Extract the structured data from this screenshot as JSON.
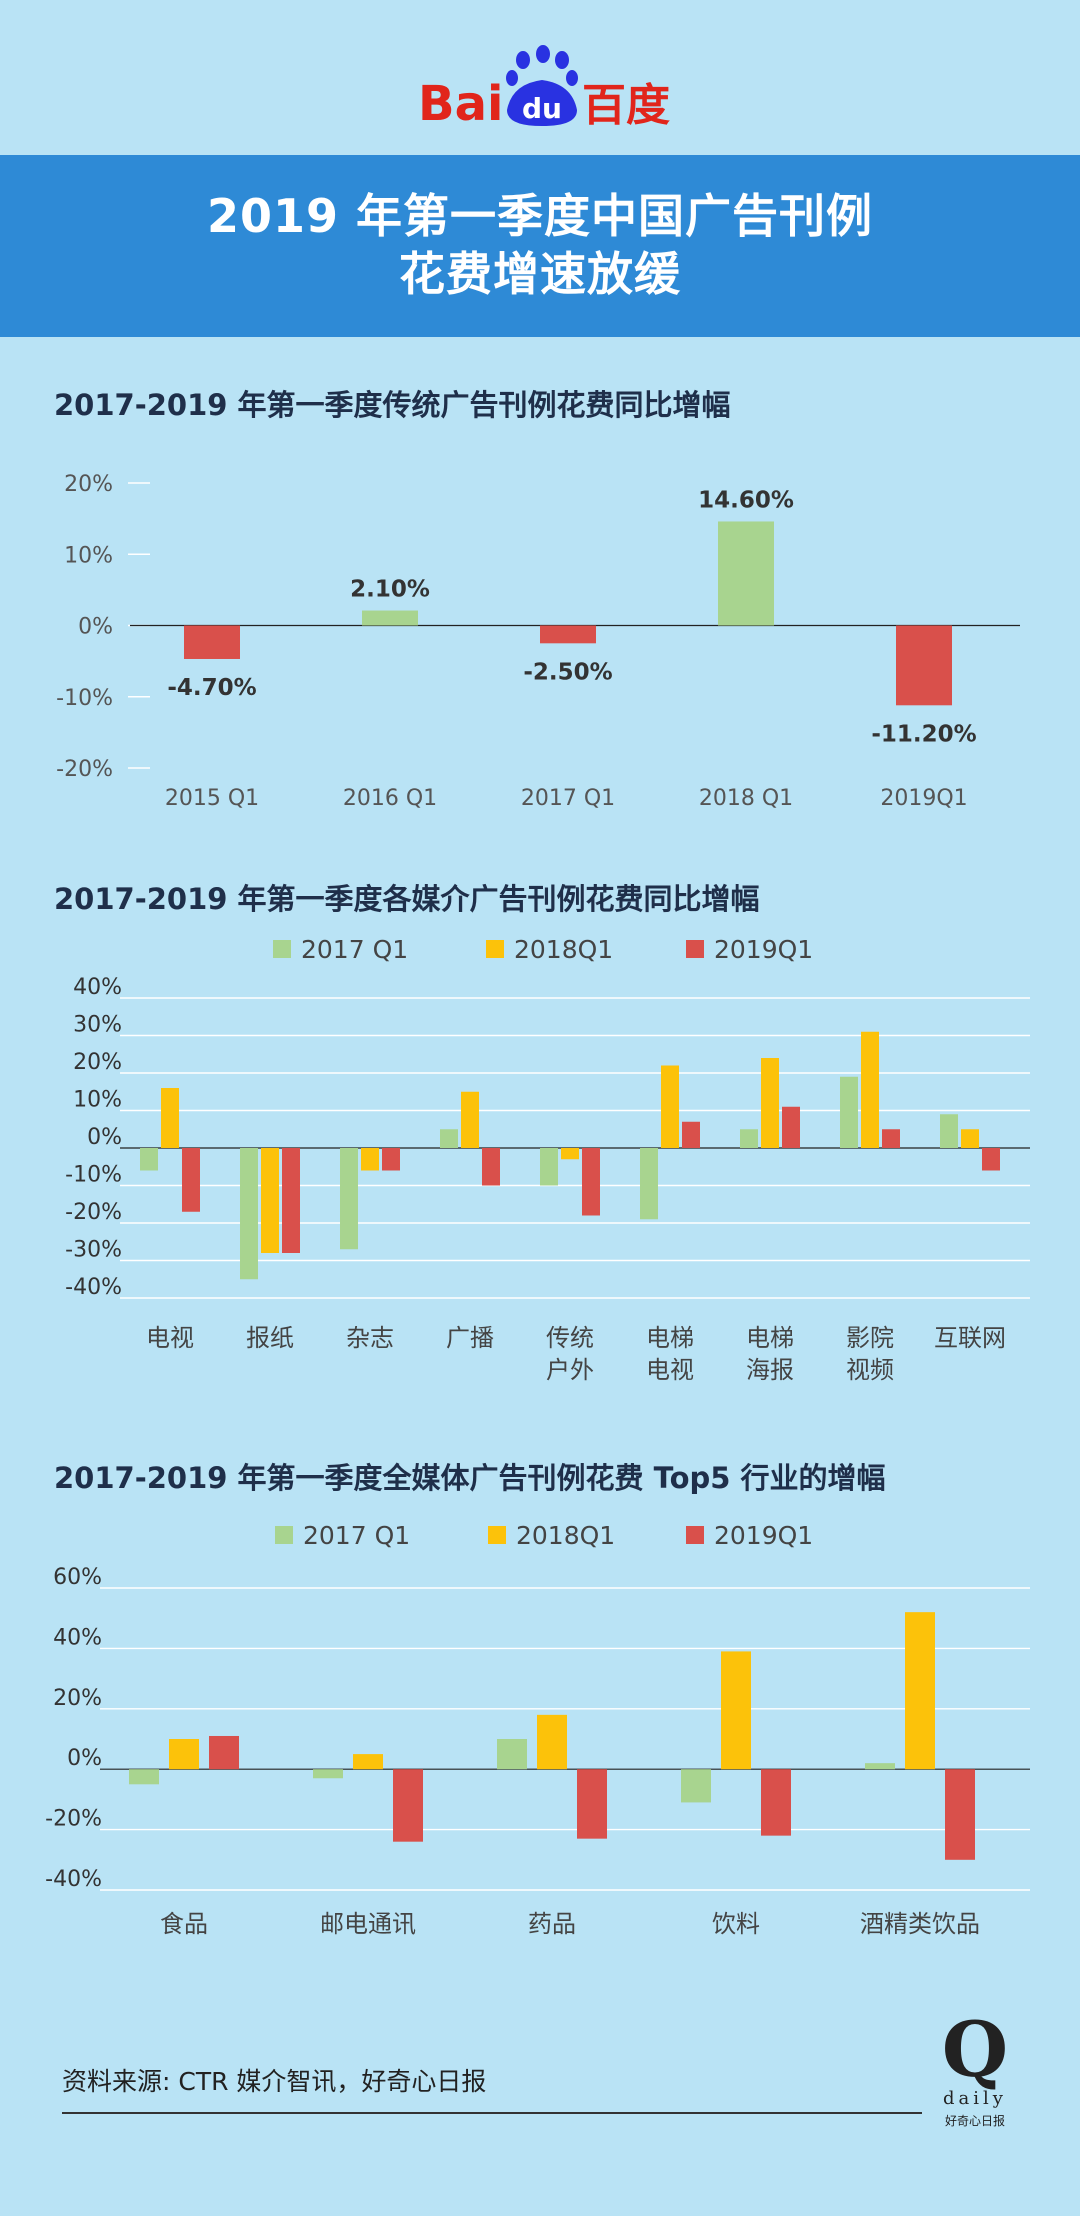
{
  "logo": {
    "text_bai": "Bai",
    "text_du": "du",
    "text_cn": "百度"
  },
  "title": {
    "line1": "2019 年第一季度中国广告刊例",
    "line2": "花费增速放缓"
  },
  "colors": {
    "background": "#b9e3f5",
    "banner": "#2e8ad6",
    "green": "#a8d48f",
    "yellow": "#fcc20a",
    "red": "#d9504b"
  },
  "chart_data": [
    {
      "type": "bar",
      "title": "2017-2019 年第一季度传统广告刊例花费同比增幅",
      "categories": [
        "2015 Q1",
        "2016 Q1",
        "2017 Q1",
        "2018 Q1",
        "2019Q1"
      ],
      "values": [
        -4.7,
        2.1,
        -2.5,
        14.6,
        -11.2
      ],
      "value_labels": [
        "-4.70%",
        "2.10%",
        "-2.50%",
        "14.60%",
        "-11.20%"
      ],
      "bar_colors": [
        "#d9504b",
        "#a8d48f",
        "#d9504b",
        "#a8d48f",
        "#d9504b"
      ],
      "yticks": [
        "20%",
        "10%",
        "0%",
        "-10%",
        "-20%"
      ],
      "ylim": [
        -20,
        20
      ],
      "grid": false
    },
    {
      "type": "bar",
      "title": "2017-2019 年第一季度各媒介广告刊例花费同比增幅",
      "categories": [
        "电视",
        "报纸",
        "杂志",
        "广播",
        "传统\n户外",
        "电梯\n电视",
        "电梯\n海报",
        "影院\n视频",
        "互联网"
      ],
      "series": [
        {
          "name": "2017 Q1",
          "color": "#a8d48f",
          "values": [
            -6,
            -35,
            -27,
            5,
            -10,
            -19,
            5,
            19,
            9
          ]
        },
        {
          "name": "2018Q1",
          "color": "#fcc20a",
          "values": [
            16,
            -28,
            -6,
            15,
            -3,
            22,
            24,
            31,
            5
          ]
        },
        {
          "name": "2019Q1",
          "color": "#d9504b",
          "values": [
            -17,
            -28,
            -6,
            -10,
            -18,
            7,
            11,
            5,
            -6
          ]
        }
      ],
      "yticks": [
        "40%",
        "30%",
        "20%",
        "10%",
        "0%",
        "-10%",
        "-20%",
        "-30%",
        "-40%"
      ],
      "ylim": [
        -40,
        40
      ],
      "grid": true,
      "legend": "top"
    },
    {
      "type": "bar",
      "title": "2017-2019 年第一季度全媒体广告刊例花费 Top5 行业的增幅",
      "categories": [
        "食品",
        "邮电通讯",
        "药品",
        "饮料",
        "酒精类饮品"
      ],
      "series": [
        {
          "name": "2017 Q1",
          "color": "#a8d48f",
          "values": [
            -5,
            -3,
            10,
            -11,
            2
          ]
        },
        {
          "name": "2018Q1",
          "color": "#fcc20a",
          "values": [
            10,
            5,
            18,
            39,
            52
          ]
        },
        {
          "name": "2019Q1",
          "color": "#d9504b",
          "values": [
            11,
            -24,
            -23,
            -22,
            -30
          ]
        }
      ],
      "yticks": [
        "60%",
        "40%",
        "20%",
        "0%",
        "-20%",
        "-40%"
      ],
      "ylim": [
        -40,
        60
      ],
      "grid": true,
      "legend": "top"
    }
  ],
  "footer": {
    "source": "资料来源: CTR 媒介智讯，好奇心日报",
    "brand_q": "Q",
    "brand_daily": "daily",
    "brand_cn": "好奇心日报"
  }
}
